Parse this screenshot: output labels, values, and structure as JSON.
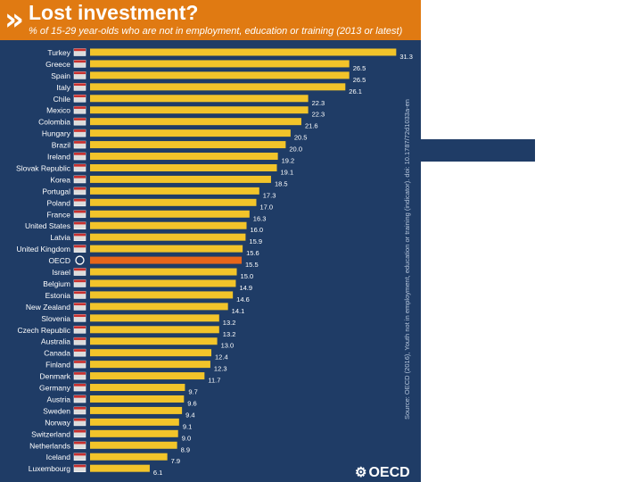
{
  "header": {
    "logo_mark": "»",
    "title": "Lost investment?",
    "subtitle": "% of 15-29 year-olds who are not in employment, education or training (2013 or latest)"
  },
  "source": "Source: OECD (2016), Youth not in employment, education or training (indicator). doi: 10.1787/72d1033a-en",
  "logo": {
    "symbol": "⚙",
    "text": "OECD"
  },
  "colors": {
    "bar": "#f2c42a",
    "highlight_bar": "#e8661a",
    "background": "#1f3c66",
    "header": "#e07a12"
  },
  "chart_data": {
    "type": "bar",
    "orientation": "horizontal",
    "title": "Lost investment?",
    "subtitle": "% of 15-29 year-olds who are not in employment, education or training (2013 or latest)",
    "xlabel": "",
    "ylabel": "",
    "xlim": [
      0,
      33
    ],
    "highlight": "OECD",
    "categories": [
      "Turkey",
      "Greece",
      "Spain",
      "Italy",
      "Chile",
      "Mexico",
      "Colombia",
      "Hungary",
      "Brazil",
      "Ireland",
      "Slovak Republic",
      "Korea",
      "Portugal",
      "Poland",
      "France",
      "United States",
      "Latvia",
      "United Kingdom",
      "OECD",
      "Israel",
      "Belgium",
      "Estonia",
      "New Zealand",
      "Slovenia",
      "Czech Republic",
      "Australia",
      "Canada",
      "Finland",
      "Denmark",
      "Germany",
      "Austria",
      "Sweden",
      "Norway",
      "Switzerland",
      "Netherlands",
      "Iceland",
      "Luxembourg"
    ],
    "values": [
      31.3,
      26.5,
      26.5,
      26.1,
      22.3,
      22.3,
      21.6,
      20.5,
      20.0,
      19.2,
      19.1,
      18.5,
      17.3,
      17.0,
      16.3,
      16.0,
      15.9,
      15.6,
      15.5,
      15.0,
      14.9,
      14.6,
      14.1,
      13.2,
      13.2,
      13.0,
      12.4,
      12.3,
      11.7,
      9.7,
      9.6,
      9.4,
      9.1,
      9.0,
      8.9,
      7.9,
      6.1
    ],
    "flags": [
      "flag-turkey-icon",
      "flag-greece-icon",
      "flag-spain-icon",
      "flag-italy-icon",
      "flag-chile-icon",
      "flag-mexico-icon",
      "flag-colombia-icon",
      "flag-hungary-icon",
      "flag-brazil-icon",
      "flag-ireland-icon",
      "flag-slovak-republic-icon",
      "flag-korea-icon",
      "flag-portugal-icon",
      "flag-poland-icon",
      "flag-france-icon",
      "flag-united-states-icon",
      "flag-latvia-icon",
      "flag-united-kingdom-icon",
      "oecd-icon",
      "flag-israel-icon",
      "flag-belgium-icon",
      "flag-estonia-icon",
      "flag-new-zealand-icon",
      "flag-slovenia-icon",
      "flag-czech-republic-icon",
      "flag-australia-icon",
      "flag-canada-icon",
      "flag-finland-icon",
      "flag-denmark-icon",
      "flag-germany-icon",
      "flag-austria-icon",
      "flag-sweden-icon",
      "flag-norway-icon",
      "flag-switzerland-icon",
      "flag-netherlands-icon",
      "flag-iceland-icon",
      "flag-luxembourg-icon"
    ]
  }
}
